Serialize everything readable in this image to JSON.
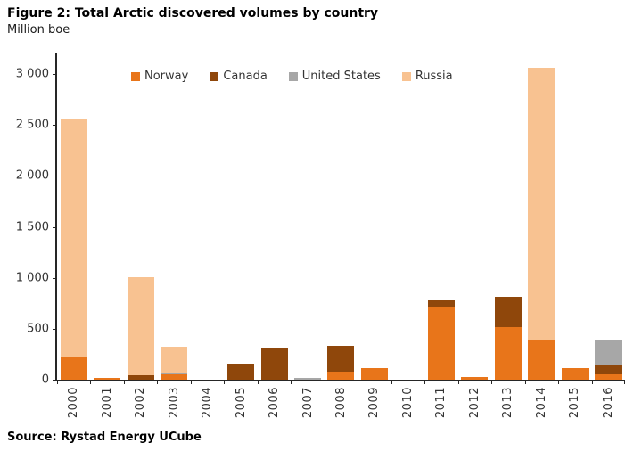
{
  "figure": {
    "title": "Figure 2: Total Arctic discovered volumes by country",
    "subtitle": "Million boe",
    "source": "Source: Rystad Energy UCube"
  },
  "colors": {
    "norway": "#E8751A",
    "canada": "#8F470B",
    "united_states": "#A7A7A7",
    "russia": "#F8C291",
    "axis": "#262626",
    "tick_text": "#333333"
  },
  "chart_data": {
    "type": "bar",
    "stacked": true,
    "title": "Figure 2: Total Arctic discovered volumes by country",
    "ylabel": "Million boe",
    "xlabel": "",
    "ylim": [
      0,
      3000
    ],
    "ytick_step": 500,
    "ytick_labels": [
      "0",
      "500",
      "1 000",
      "1 500",
      "2 000",
      "2 500",
      "3 000"
    ],
    "grid": false,
    "legend_position": "top-center-inside",
    "categories": [
      "2000",
      "2001",
      "2002",
      "2003",
      "2004",
      "2005",
      "2006",
      "2007",
      "2008",
      "2009",
      "2010",
      "2011",
      "2012",
      "2013",
      "2014",
      "2015",
      "2016"
    ],
    "series": [
      {
        "name": "Norway",
        "color": "#E8751A",
        "values": [
          230,
          20,
          0,
          50,
          0,
          0,
          0,
          0,
          75,
          110,
          0,
          720,
          30,
          515,
          390,
          110,
          50
        ]
      },
      {
        "name": "Canada",
        "color": "#8F470B",
        "values": [
          0,
          0,
          40,
          0,
          0,
          155,
          305,
          0,
          255,
          0,
          0,
          55,
          0,
          295,
          0,
          0,
          90
        ]
      },
      {
        "name": "United States",
        "color": "#A7A7A7",
        "values": [
          0,
          0,
          0,
          20,
          0,
          0,
          0,
          20,
          0,
          0,
          0,
          0,
          0,
          0,
          0,
          0,
          250
        ]
      },
      {
        "name": "Russia",
        "color": "#F8C291",
        "values": [
          2330,
          0,
          970,
          250,
          0,
          0,
          0,
          0,
          0,
          0,
          0,
          0,
          0,
          0,
          2670,
          0,
          0
        ]
      }
    ],
    "totals": [
      2560,
      20,
      1010,
      320,
      0,
      155,
      305,
      20,
      330,
      110,
      0,
      775,
      30,
      810,
      3060,
      110,
      390
    ]
  }
}
